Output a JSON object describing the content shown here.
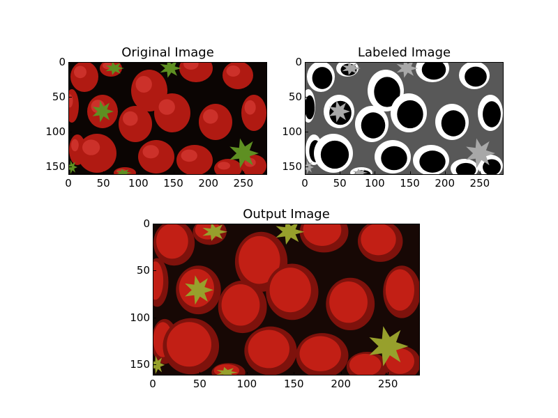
{
  "figure": {
    "panels": [
      {
        "key": "original",
        "title": "Original Image",
        "xticks": [
          "0",
          "50",
          "100",
          "150",
          "200",
          "250"
        ],
        "yticks": [
          "0",
          "50",
          "100",
          "150"
        ],
        "colors": {
          "background": "#0b0503",
          "berry": "#b01a12",
          "highlight": "#e0413a",
          "leaf": "#5e8f22"
        }
      },
      {
        "key": "labeled",
        "title": "Labeled Image",
        "xticks": [
          "0",
          "50",
          "100",
          "150",
          "200",
          "250"
        ],
        "yticks": [
          "0",
          "50",
          "100",
          "150"
        ],
        "colors": {
          "background": "#585858",
          "ring": "#ffffff",
          "body": "#000000",
          "leaf": "#a8a8a8"
        }
      },
      {
        "key": "output",
        "title": "Output Image",
        "xticks": [
          "0",
          "50",
          "100",
          "150",
          "200",
          "250"
        ],
        "yticks": [
          "0",
          "50",
          "100",
          "150"
        ],
        "colors": {
          "background": "#170805",
          "shadow": "#7e120c",
          "berry": "#c21f15",
          "leaf": "#97a02c"
        }
      }
    ]
  }
}
